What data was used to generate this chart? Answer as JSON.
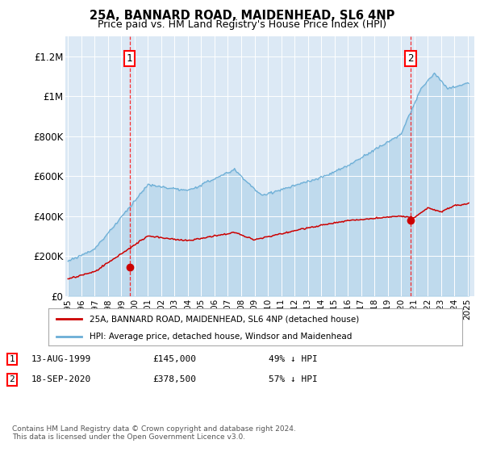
{
  "title1": "25A, BANNARD ROAD, MAIDENHEAD, SL6 4NP",
  "title2": "Price paid vs. HM Land Registry's House Price Index (HPI)",
  "bg_color": "#dce9f5",
  "hpi_color": "#6baed6",
  "price_color": "#cc0000",
  "ylim": [
    0,
    1300000
  ],
  "yticks": [
    0,
    200000,
    400000,
    600000,
    800000,
    1000000,
    1200000
  ],
  "ytick_labels": [
    "£0",
    "£200K",
    "£400K",
    "£600K",
    "£800K",
    "£1M",
    "£1.2M"
  ],
  "sale1_x": 1999.62,
  "sale1_price": 145000,
  "sale2_x": 2020.71,
  "sale2_price": 378500,
  "legend_line1": "25A, BANNARD ROAD, MAIDENHEAD, SL6 4NP (detached house)",
  "legend_line2": "HPI: Average price, detached house, Windsor and Maidenhead",
  "ann1_date": "13-AUG-1999",
  "ann1_price": "£145,000",
  "ann1_pct": "49% ↓ HPI",
  "ann2_date": "18-SEP-2020",
  "ann2_price": "£378,500",
  "ann2_pct": "57% ↓ HPI",
  "footer": "Contains HM Land Registry data © Crown copyright and database right 2024.\nThis data is licensed under the Open Government Licence v3.0."
}
